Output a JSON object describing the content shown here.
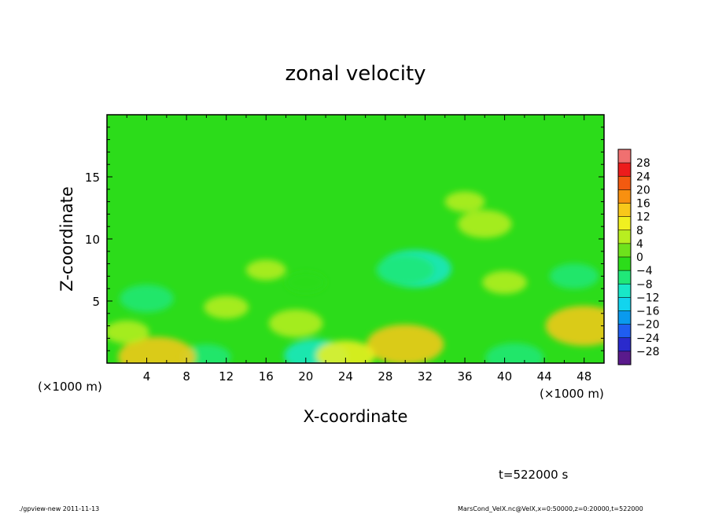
{
  "chart_data": {
    "type": "heatmap",
    "title": "zonal velocity",
    "xlabel": "X-coordinate",
    "ylabel": "Z-coordinate",
    "x_unit_left": "(×1000 m)",
    "x_unit_right": "(×1000 m)",
    "xlim": [
      0,
      50
    ],
    "ylim": [
      0,
      20
    ],
    "xticks": [
      4,
      8,
      12,
      16,
      20,
      24,
      28,
      32,
      36,
      40,
      44,
      48
    ],
    "xtick_labels": [
      "4",
      "8",
      "12",
      "16",
      "20",
      "24",
      "28",
      "32",
      "36",
      "40",
      "44",
      "48"
    ],
    "yticks": [
      5,
      10,
      15
    ],
    "ytick_labels": [
      "5",
      "10",
      "15"
    ],
    "colorbar": {
      "levels": [
        -32,
        -28,
        -24,
        -20,
        -16,
        -12,
        -8,
        -4,
        0,
        4,
        8,
        12,
        16,
        20,
        24,
        28,
        32
      ],
      "labels": [
        "28",
        "24",
        "20",
        "16",
        "12",
        "8",
        "4",
        "0",
        "−4",
        "−8",
        "−12",
        "−16",
        "−20",
        "−24",
        "−28"
      ],
      "colors": [
        "#5a1a8c",
        "#2a2acc",
        "#1f5ef0",
        "#0a9aee",
        "#12d4ee",
        "#18e8c8",
        "#20e878",
        "#2cdc1a",
        "#6ee21c",
        "#b8ee20",
        "#f0f020",
        "#f8c81a",
        "#f89010",
        "#f25a10",
        "#ec1c1c",
        "#f07070"
      ]
    },
    "features": [
      {
        "x": 31,
        "z": 7.6,
        "value": -11
      },
      {
        "x": 30,
        "z": 7.5,
        "value": -8
      },
      {
        "x": 4,
        "z": 5.2,
        "value": -7
      },
      {
        "x": 47,
        "z": 7.0,
        "value": -6
      },
      {
        "x": 21,
        "z": 0.6,
        "value": -9
      },
      {
        "x": 41,
        "z": 0.4,
        "value": -8
      },
      {
        "x": 10,
        "z": 0.5,
        "value": -6
      },
      {
        "x": 20,
        "z": 6.5,
        "value": -4
      },
      {
        "x": 5,
        "z": 0.5,
        "value": 14
      },
      {
        "x": 30,
        "z": 1.5,
        "value": 12
      },
      {
        "x": 48,
        "z": 3.0,
        "value": 13
      },
      {
        "x": 24,
        "z": 0.6,
        "value": 8
      },
      {
        "x": 19,
        "z": 3.2,
        "value": 7
      },
      {
        "x": 38,
        "z": 11.2,
        "value": 7
      },
      {
        "x": 12,
        "z": 4.5,
        "value": 5
      },
      {
        "x": 40,
        "z": 6.5,
        "value": 5
      },
      {
        "x": 16,
        "z": 7.5,
        "value": 4
      },
      {
        "x": 36,
        "z": 13,
        "value": 4
      },
      {
        "x": 2,
        "z": 2.5,
        "value": 5
      }
    ],
    "time_label": "t=522000 s"
  },
  "footer": {
    "left": "./gpview-new   2011-11-13",
    "right": "MarsCond_VelX.nc@VelX,x=0:50000,z=0:20000,t=522000"
  }
}
